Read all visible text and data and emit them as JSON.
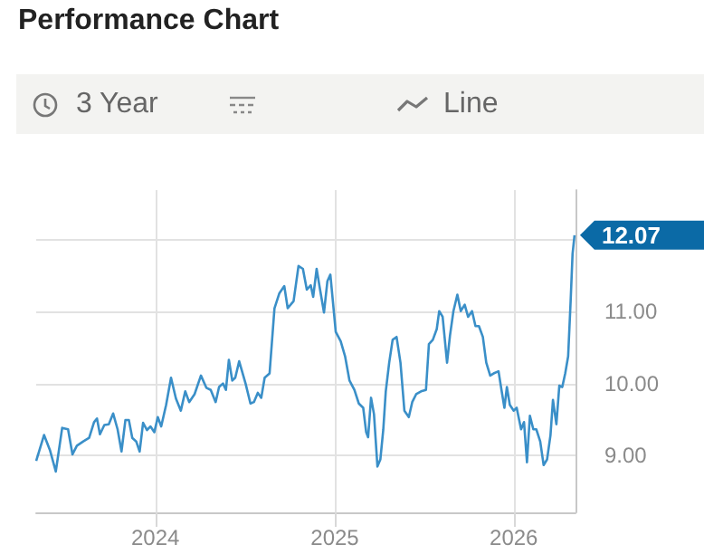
{
  "chart_data": {
    "type": "line",
    "title": "Performance Chart",
    "annotations": [
      "3 Year",
      "Line",
      {
        "text": "12.07",
        "x": "2026-05-05",
        "y": 12.07
      }
    ],
    "series": [
      {
        "color": "#3a8fc8",
        "x": [
          "2023-05-03",
          "2023-05-19",
          "2023-05-31",
          "2023-06-12",
          "2023-06-25",
          "2023-07-07",
          "2023-07-16",
          "2023-07-25",
          "2023-08-07",
          "2023-08-19",
          "2023-08-29",
          "2023-09-04",
          "2023-09-10",
          "2023-09-19",
          "2023-09-28",
          "2023-10-07",
          "2023-10-16",
          "2023-10-24",
          "2023-11-01",
          "2023-11-08",
          "2023-11-15",
          "2023-11-23",
          "2023-11-30",
          "2023-12-07",
          "2023-12-15",
          "2023-12-22",
          "2023-12-30",
          "2024-01-06",
          "2024-01-13",
          "2024-01-23",
          "2024-02-02",
          "2024-02-12",
          "2024-02-22",
          "2024-03-02",
          "2024-03-10",
          "2024-03-21",
          "2024-04-03",
          "2024-04-14",
          "2024-04-23",
          "2024-05-03",
          "2024-05-10",
          "2024-05-18",
          "2024-05-24",
          "2024-05-30",
          "2024-06-06",
          "2024-06-12",
          "2024-06-20",
          "2024-07-03",
          "2024-07-13",
          "2024-07-20",
          "2024-07-28",
          "2024-08-04",
          "2024-08-11",
          "2024-08-21",
          "2024-08-31",
          "2024-09-10",
          "2024-09-20",
          "2024-09-27",
          "2024-10-09",
          "2024-10-19",
          "2024-10-28",
          "2024-11-05",
          "2024-11-13",
          "2024-11-18",
          "2024-11-25",
          "2024-12-02",
          "2024-12-10",
          "2024-12-17",
          "2024-12-23",
          "2025-01-03",
          "2025-01-13",
          "2025-01-22",
          "2025-01-31",
          "2025-02-10",
          "2025-02-19",
          "2025-02-28",
          "2025-03-06",
          "2025-03-10",
          "2025-03-16",
          "2025-03-22",
          "2025-03-29",
          "2025-04-04",
          "2025-04-10",
          "2025-04-15",
          "2025-04-22",
          "2025-04-29",
          "2025-05-07",
          "2025-05-15",
          "2025-05-23",
          "2025-06-01",
          "2025-06-08",
          "2025-06-16",
          "2025-06-26",
          "2025-07-06",
          "2025-07-12",
          "2025-07-20",
          "2025-07-28",
          "2025-08-02",
          "2025-08-09",
          "2025-08-18",
          "2025-08-24",
          "2025-08-31",
          "2025-09-08",
          "2025-09-15",
          "2025-09-23",
          "2025-09-30",
          "2025-10-08",
          "2025-10-15",
          "2025-10-22",
          "2025-10-30",
          "2025-11-06",
          "2025-11-14",
          "2025-11-21",
          "2025-12-01",
          "2025-12-07",
          "2025-12-13",
          "2025-12-18",
          "2025-12-24",
          "2026-01-01",
          "2026-01-07",
          "2026-01-16",
          "2026-01-22",
          "2026-01-28",
          "2026-02-03",
          "2026-02-10",
          "2026-02-16",
          "2026-02-24",
          "2026-03-03",
          "2026-03-10",
          "2026-03-17",
          "2026-03-22",
          "2026-03-29",
          "2026-04-04",
          "2026-04-10",
          "2026-04-16",
          "2026-04-22",
          "2026-04-27",
          "2026-05-01",
          "2026-05-05"
        ],
        "values": [
          8.92,
          9.28,
          9.07,
          8.77,
          9.38,
          9.36,
          9.01,
          9.13,
          9.19,
          9.24,
          9.46,
          9.51,
          9.29,
          9.42,
          9.43,
          9.58,
          9.36,
          9.05,
          9.49,
          9.49,
          9.24,
          9.19,
          9.05,
          9.45,
          9.35,
          9.4,
          9.32,
          9.53,
          9.4,
          9.7,
          10.08,
          9.79,
          9.62,
          9.89,
          9.74,
          9.85,
          10.11,
          9.94,
          9.91,
          9.74,
          9.95,
          10.0,
          9.91,
          10.33,
          10.04,
          10.08,
          10.31,
          10.0,
          9.72,
          9.74,
          9.87,
          9.8,
          10.08,
          10.14,
          11.05,
          11.26,
          11.36,
          11.05,
          11.15,
          11.64,
          11.6,
          11.31,
          11.37,
          11.21,
          11.6,
          11.31,
          10.99,
          11.43,
          11.52,
          10.72,
          10.59,
          10.38,
          10.04,
          9.91,
          9.72,
          9.66,
          9.32,
          9.25,
          9.8,
          9.57,
          8.84,
          8.94,
          9.36,
          9.89,
          10.29,
          10.61,
          10.65,
          10.29,
          9.62,
          9.53,
          9.74,
          9.85,
          9.89,
          9.91,
          10.55,
          10.61,
          10.76,
          11.01,
          10.93,
          10.29,
          10.67,
          11.01,
          11.24,
          11.01,
          11.1,
          10.93,
          11.01,
          10.8,
          10.8,
          10.65,
          10.29,
          10.11,
          10.14,
          10.17,
          9.91,
          9.66,
          9.95,
          9.7,
          9.62,
          9.66,
          9.36,
          9.46,
          8.9,
          9.55,
          9.36,
          9.36,
          9.19,
          8.86,
          8.94,
          9.28,
          9.77,
          9.43,
          9.97,
          9.95,
          10.14,
          10.38,
          11.14,
          11.81,
          12.07
        ]
      }
    ],
    "xlim": [
      "2023-05-03",
      "2026-05-07"
    ],
    "xticks": [
      {
        "value": "2024-01-01",
        "label": "2024"
      },
      {
        "value": "2025-01-01",
        "label": "2025"
      },
      {
        "value": "2026-01-01",
        "label": "2026"
      }
    ],
    "ylim": [
      8.2,
      12.7
    ],
    "yticks": [
      {
        "value": 9,
        "label": "9.00"
      },
      {
        "value": 10,
        "label": "10.00"
      },
      {
        "value": 11,
        "label": "11.00"
      },
      {
        "value": 12,
        "label": null
      }
    ],
    "grid": true
  }
}
